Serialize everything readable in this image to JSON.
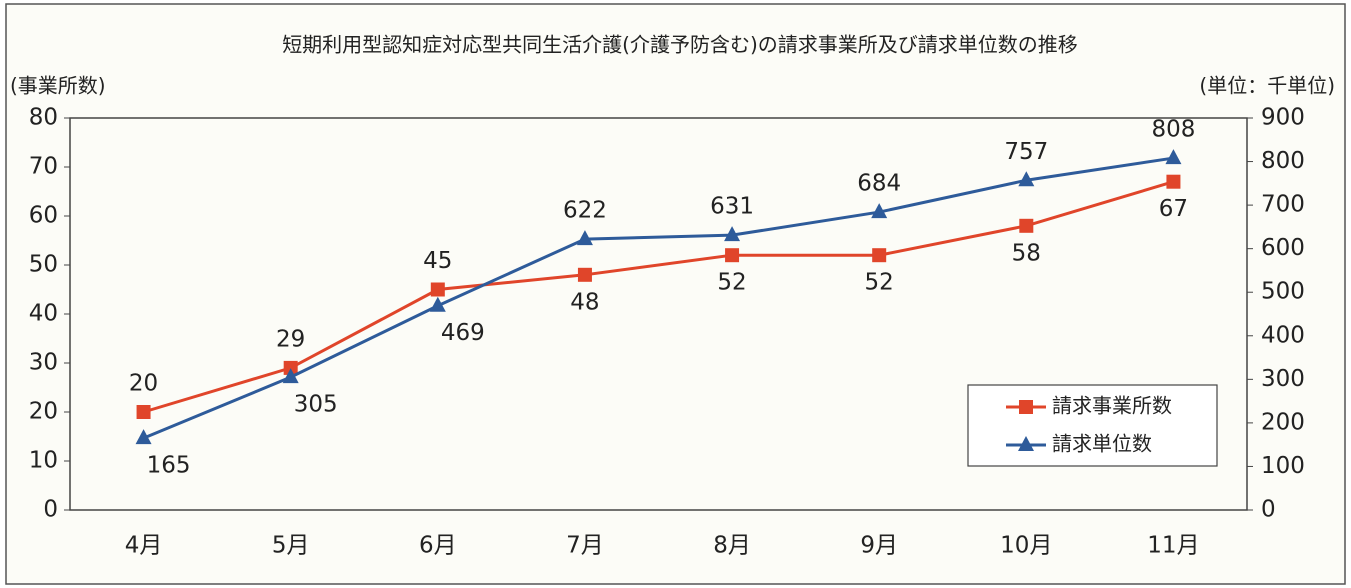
{
  "chart_data": {
    "type": "line",
    "title": "短期利用型認知症対応型共同生活介護(介護予防含む)の請求事業所及び請求単位数の推移",
    "y_label": "(事業所数)",
    "y2_label": "(単位：千単位)",
    "categories": [
      "4月",
      "5月",
      "6月",
      "7月",
      "8月",
      "9月",
      "10月",
      "11月"
    ],
    "series": [
      {
        "name": "請求事業所数",
        "color": "#e0452a",
        "marker": "square",
        "values": [
          20,
          29,
          45,
          48,
          52,
          52,
          58,
          67
        ]
      },
      {
        "name": "請求単位数",
        "color": "#2e5b9a",
        "marker": "triangle",
        "axis": "y2",
        "values": [
          165,
          305,
          469,
          622,
          631,
          684,
          757,
          808
        ]
      }
    ],
    "ylim": [
      0,
      80
    ],
    "yticks": [
      0,
      10,
      20,
      30,
      40,
      50,
      60,
      70,
      80
    ],
    "y2lim": [
      0,
      900
    ],
    "y2ticks": [
      0,
      100,
      200,
      300,
      400,
      500,
      600,
      700,
      800,
      900
    ],
    "grid": false,
    "legend": "lower right"
  }
}
